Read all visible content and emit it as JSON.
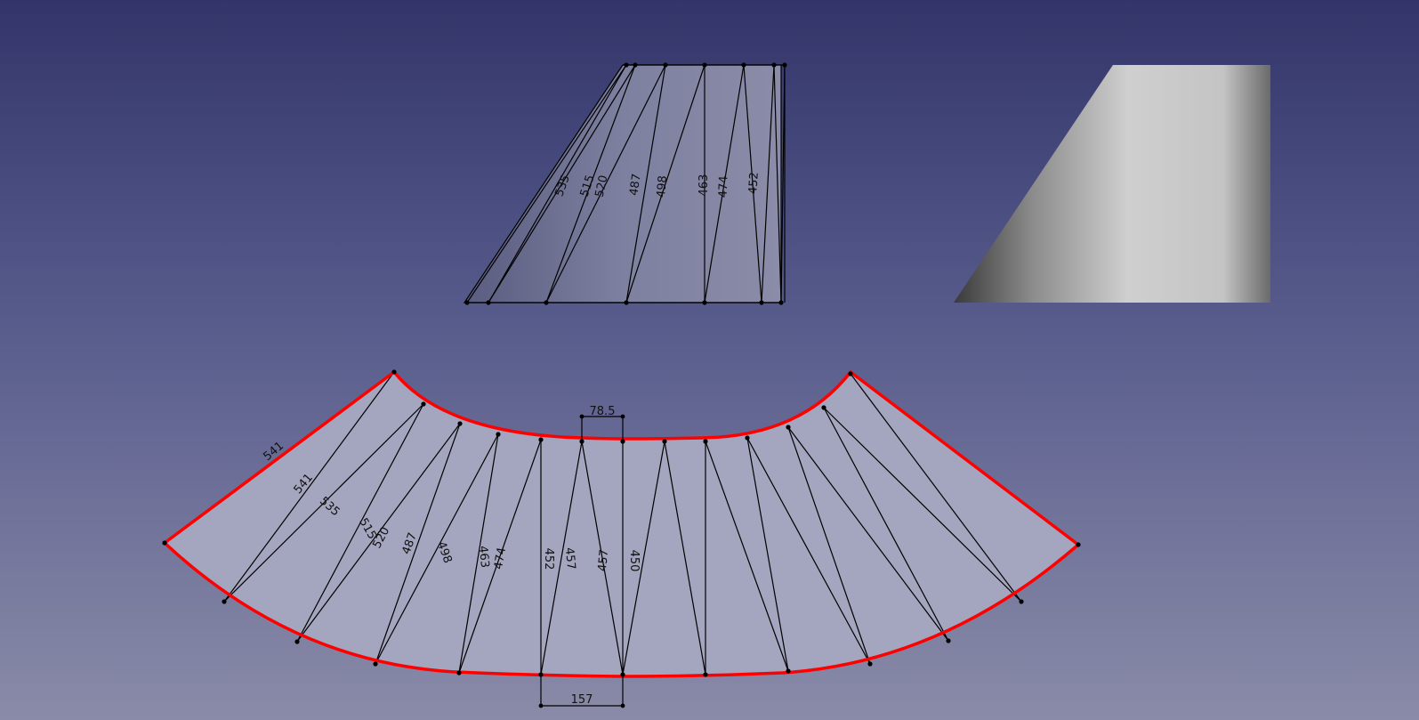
{
  "viewport": {
    "background_top": "#33356a",
    "background_bottom": "#8a8ba8"
  },
  "colors": {
    "outline": "#ff0000",
    "fold_lines": "#000000",
    "face": "#a4a5be",
    "mesh_face": "#7a7b9c",
    "solid_face": "#c9c9c9"
  },
  "mesh_view": {
    "labels": [
      "535",
      "515",
      "520",
      "487",
      "498",
      "463",
      "474",
      "452"
    ]
  },
  "unfolded_view": {
    "top_dimension": "78.5",
    "bottom_dimension": "157",
    "labels": [
      "541",
      "541",
      "535",
      "515",
      "520",
      "487",
      "498",
      "463",
      "474",
      "452",
      "457",
      "457",
      "450"
    ]
  }
}
